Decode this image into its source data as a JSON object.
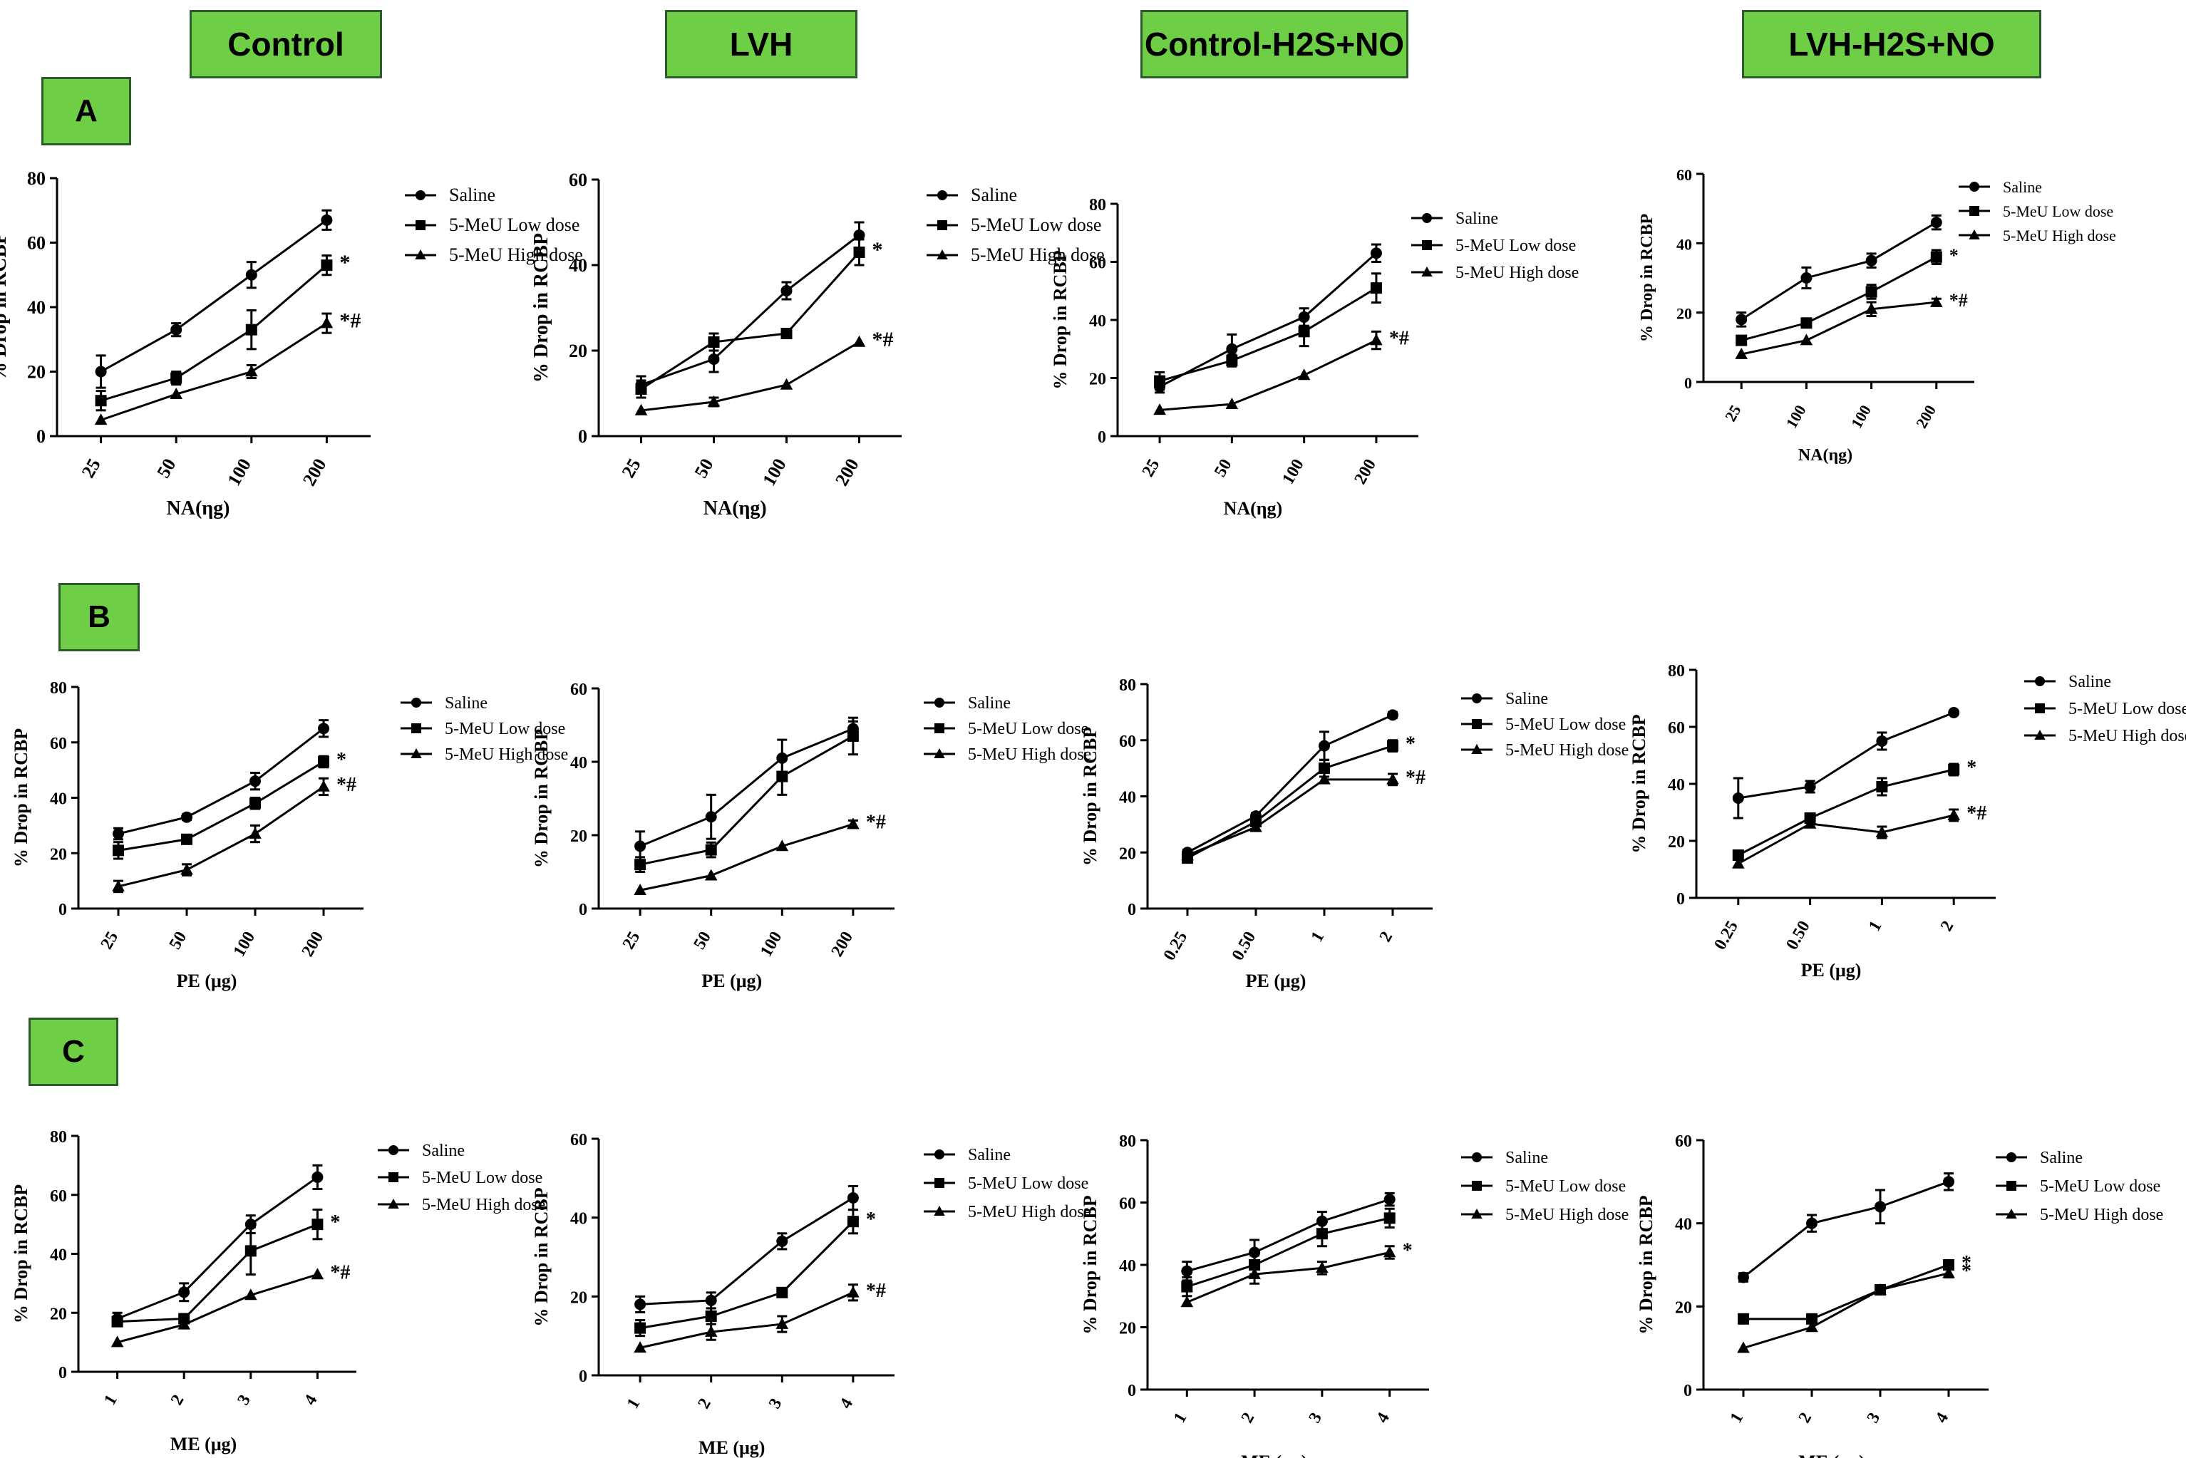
{
  "colors": {
    "header_fill": "#6ecf47",
    "header_border": "#2e5a2e",
    "ink": "#000000"
  },
  "column_headers": [
    "Control",
    "LVH",
    "Control-H2S+NO",
    "LVH-H2S+NO"
  ],
  "row_labels": [
    "A",
    "B",
    "C"
  ],
  "legend_labels": [
    "Saline",
    "5-MeU Low dose",
    "5-MeU High dose"
  ],
  "chart_data": [
    {
      "id": "A-Control",
      "type": "line",
      "title": "",
      "xlabel": "NA(ηg)",
      "ylabel": "% Drop in RCBP",
      "categories": [
        "25",
        "50",
        "100",
        "200"
      ],
      "ylim": [
        0,
        80
      ],
      "yticks": [
        0,
        20,
        40,
        60,
        80
      ],
      "series": [
        {
          "name": "Saline",
          "marker": "circle",
          "values": [
            20,
            33,
            50,
            67
          ],
          "errors": [
            5,
            2,
            4,
            3
          ]
        },
        {
          "name": "5-MeU Low dose",
          "marker": "square",
          "values": [
            11,
            18,
            33,
            53
          ],
          "errors": [
            3,
            2,
            6,
            3
          ]
        },
        {
          "name": "5-MeU High dose",
          "marker": "triangle",
          "values": [
            5,
            13,
            20,
            35
          ],
          "errors": [
            0,
            0,
            2,
            3
          ]
        }
      ],
      "annotations": [
        {
          "series": 1,
          "text": "*"
        },
        {
          "series": 2,
          "text": "*#"
        }
      ]
    },
    {
      "id": "A-LVH",
      "type": "line",
      "title": "",
      "xlabel": "NA(ηg)",
      "ylabel": "% Drop in RCBP",
      "categories": [
        "25",
        "50",
        "100",
        "200"
      ],
      "ylim": [
        0,
        60
      ],
      "yticks": [
        0,
        20,
        40,
        60
      ],
      "series": [
        {
          "name": "Saline",
          "marker": "circle",
          "values": [
            12,
            18,
            34,
            47
          ],
          "errors": [
            2,
            3,
            2,
            3
          ]
        },
        {
          "name": "5-MeU Low dose",
          "marker": "square",
          "values": [
            11,
            22,
            24,
            43
          ],
          "errors": [
            2,
            2,
            1,
            3
          ]
        },
        {
          "name": "5-MeU High dose",
          "marker": "triangle",
          "values": [
            6,
            8,
            12,
            22
          ],
          "errors": [
            0,
            1,
            0,
            0
          ]
        }
      ],
      "annotations": [
        {
          "series": 1,
          "text": "*"
        },
        {
          "series": 2,
          "text": "*#"
        }
      ]
    },
    {
      "id": "A-Control-H2S+NO",
      "type": "line",
      "title": "",
      "xlabel": "NA(ηg)",
      "ylabel": "% Drop in RCBP",
      "categories": [
        "25",
        "50",
        "100",
        "200"
      ],
      "ylim": [
        0,
        80
      ],
      "yticks": [
        0,
        20,
        40,
        60,
        80
      ],
      "series": [
        {
          "name": "Saline",
          "marker": "circle",
          "values": [
            17,
            30,
            41,
            63
          ],
          "errors": [
            2,
            5,
            3,
            3
          ]
        },
        {
          "name": "5-MeU Low dose",
          "marker": "square",
          "values": [
            19,
            26,
            36,
            51
          ],
          "errors": [
            3,
            2,
            5,
            5
          ]
        },
        {
          "name": "5-MeU High dose",
          "marker": "triangle",
          "values": [
            9,
            11,
            21,
            33
          ],
          "errors": [
            0,
            0,
            0,
            3
          ]
        }
      ],
      "annotations": [
        {
          "series": 2,
          "text": "*#"
        }
      ]
    },
    {
      "id": "A-LVH-H2S+NO",
      "type": "line",
      "title": "",
      "xlabel": "NA(ηg)",
      "ylabel": "% Drop in RCBP",
      "categories": [
        "25",
        "100",
        "100",
        "200"
      ],
      "ylim": [
        0,
        60
      ],
      "yticks": [
        0,
        20,
        40,
        60
      ],
      "series": [
        {
          "name": "Saline",
          "marker": "circle",
          "values": [
            18,
            30,
            35,
            46
          ],
          "errors": [
            2,
            3,
            2,
            2
          ]
        },
        {
          "name": "5-MeU Low dose",
          "marker": "square",
          "values": [
            12,
            17,
            26,
            36
          ],
          "errors": [
            1,
            0,
            2,
            2
          ]
        },
        {
          "name": "5-MeU High dose",
          "marker": "triangle",
          "values": [
            8,
            12,
            21,
            23
          ],
          "errors": [
            0,
            0,
            2,
            1
          ]
        }
      ],
      "annotations": [
        {
          "series": 1,
          "text": "*"
        },
        {
          "series": 2,
          "text": "*#"
        }
      ]
    },
    {
      "id": "B-Control",
      "type": "line",
      "title": "",
      "xlabel": "PE (μg)",
      "ylabel": "% Drop in RCBP",
      "categories": [
        "25",
        "50",
        "100",
        "200"
      ],
      "ylim": [
        0,
        80
      ],
      "yticks": [
        0,
        20,
        40,
        60,
        80
      ],
      "series": [
        {
          "name": "Saline",
          "marker": "circle",
          "values": [
            27,
            33,
            46,
            65
          ],
          "errors": [
            2,
            1,
            3,
            3
          ]
        },
        {
          "name": "5-MeU Low dose",
          "marker": "square",
          "values": [
            21,
            25,
            38,
            53
          ],
          "errors": [
            3,
            1,
            2,
            2
          ]
        },
        {
          "name": "5-MeU High dose",
          "marker": "triangle",
          "values": [
            8,
            14,
            27,
            44
          ],
          "errors": [
            2,
            2,
            3,
            3
          ]
        }
      ],
      "annotations": [
        {
          "series": 1,
          "text": "*"
        },
        {
          "series": 2,
          "text": "*#"
        }
      ]
    },
    {
      "id": "B-LVH",
      "type": "line",
      "title": "",
      "xlabel": "PE (μg)",
      "ylabel": "% Drop in RCBP",
      "categories": [
        "25",
        "50",
        "100",
        "200"
      ],
      "ylim": [
        0,
        60
      ],
      "yticks": [
        0,
        20,
        40,
        60
      ],
      "series": [
        {
          "name": "Saline",
          "marker": "circle",
          "values": [
            17,
            25,
            41,
            49
          ],
          "errors": [
            4,
            6,
            5,
            2
          ]
        },
        {
          "name": "5-MeU Low dose",
          "marker": "square",
          "values": [
            12,
            16,
            36,
            47
          ],
          "errors": [
            2,
            2,
            5,
            5
          ]
        },
        {
          "name": "5-MeU High dose",
          "marker": "triangle",
          "values": [
            5,
            9,
            17,
            23
          ],
          "errors": [
            0,
            0,
            0,
            1
          ]
        }
      ],
      "annotations": [
        {
          "series": 2,
          "text": "*#"
        }
      ]
    },
    {
      "id": "B-Control-H2S+NO",
      "type": "line",
      "title": "",
      "xlabel": "PE (μg)",
      "ylabel": "% Drop in RCBP",
      "categories": [
        "0.25",
        "0.50",
        "1",
        "2"
      ],
      "ylim": [
        0,
        80
      ],
      "yticks": [
        0,
        20,
        40,
        60,
        80
      ],
      "series": [
        {
          "name": "Saline",
          "marker": "circle",
          "values": [
            20,
            33,
            58,
            69
          ],
          "errors": [
            1,
            1,
            5,
            1
          ]
        },
        {
          "name": "5-MeU Low dose",
          "marker": "square",
          "values": [
            18,
            31,
            50,
            58
          ],
          "errors": [
            1,
            1,
            3,
            2
          ]
        },
        {
          "name": "5-MeU High dose",
          "marker": "triangle",
          "values": [
            19,
            29,
            46,
            46
          ],
          "errors": [
            0,
            0,
            0,
            2
          ]
        }
      ],
      "annotations": [
        {
          "series": 1,
          "text": "*"
        },
        {
          "series": 2,
          "text": "*#"
        }
      ]
    },
    {
      "id": "B-LVH-H2S+NO",
      "type": "line",
      "title": "",
      "xlabel": "PE (μg)",
      "ylabel": "% Drop in RCBP",
      "categories": [
        "0.25",
        "0.50",
        "1",
        "2"
      ],
      "ylim": [
        0,
        80
      ],
      "yticks": [
        0,
        20,
        40,
        60,
        80
      ],
      "series": [
        {
          "name": "Saline",
          "marker": "circle",
          "values": [
            35,
            39,
            55,
            65
          ],
          "errors": [
            7,
            2,
            3,
            0
          ]
        },
        {
          "name": "5-MeU Low dose",
          "marker": "square",
          "values": [
            15,
            28,
            39,
            45
          ],
          "errors": [
            0,
            0,
            3,
            2
          ]
        },
        {
          "name": "5-MeU High dose",
          "marker": "triangle",
          "values": [
            12,
            26,
            23,
            29
          ],
          "errors": [
            0,
            0,
            2,
            2
          ]
        }
      ],
      "annotations": [
        {
          "series": 1,
          "text": "*"
        },
        {
          "series": 2,
          "text": "*#"
        }
      ]
    },
    {
      "id": "C-Control",
      "type": "line",
      "title": "",
      "xlabel": "ME (μg)",
      "ylabel": "% Drop in RCBP",
      "categories": [
        "1",
        "2",
        "3",
        "4"
      ],
      "ylim": [
        0,
        80
      ],
      "yticks": [
        0,
        20,
        40,
        60,
        80
      ],
      "series": [
        {
          "name": "Saline",
          "marker": "circle",
          "values": [
            18,
            27,
            50,
            66
          ],
          "errors": [
            2,
            3,
            3,
            4
          ]
        },
        {
          "name": "5-MeU Low dose",
          "marker": "square",
          "values": [
            17,
            18,
            41,
            50
          ],
          "errors": [
            1,
            1,
            8,
            5
          ]
        },
        {
          "name": "5-MeU High dose",
          "marker": "triangle",
          "values": [
            10,
            16,
            26,
            33
          ],
          "errors": [
            0,
            0,
            0,
            0
          ]
        }
      ],
      "annotations": [
        {
          "series": 1,
          "text": "*"
        },
        {
          "series": 2,
          "text": "*#"
        }
      ]
    },
    {
      "id": "C-LVH",
      "type": "line",
      "title": "",
      "xlabel": "ME (μg)",
      "ylabel": "% Drop in RCBP",
      "categories": [
        "1",
        "2",
        "3",
        "4"
      ],
      "ylim": [
        0,
        60
      ],
      "yticks": [
        0,
        20,
        40,
        60
      ],
      "series": [
        {
          "name": "Saline",
          "marker": "circle",
          "values": [
            18,
            19,
            34,
            45
          ],
          "errors": [
            2,
            2,
            2,
            3
          ]
        },
        {
          "name": "5-MeU Low dose",
          "marker": "square",
          "values": [
            12,
            15,
            21,
            39
          ],
          "errors": [
            2,
            2,
            1,
            3
          ]
        },
        {
          "name": "5-MeU High dose",
          "marker": "triangle",
          "values": [
            7,
            11,
            13,
            21
          ],
          "errors": [
            0,
            2,
            2,
            2
          ]
        }
      ],
      "annotations": [
        {
          "series": 1,
          "text": "*"
        },
        {
          "series": 2,
          "text": "*#"
        }
      ]
    },
    {
      "id": "C-Control-H2S+NO",
      "type": "line",
      "title": "",
      "xlabel": "ME (μg)",
      "ylabel": "% Drop in RCBP",
      "categories": [
        "1",
        "2",
        "3",
        "4"
      ],
      "ylim": [
        0,
        80
      ],
      "yticks": [
        0,
        20,
        40,
        60,
        80
      ],
      "series": [
        {
          "name": "Saline",
          "marker": "circle",
          "values": [
            38,
            44,
            54,
            61
          ],
          "errors": [
            3,
            4,
            3,
            2
          ]
        },
        {
          "name": "5-MeU Low dose",
          "marker": "square",
          "values": [
            33,
            40,
            50,
            55
          ],
          "errors": [
            3,
            3,
            4,
            3
          ]
        },
        {
          "name": "5-MeU High dose",
          "marker": "triangle",
          "values": [
            28,
            37,
            39,
            44
          ],
          "errors": [
            0,
            3,
            2,
            2
          ]
        }
      ],
      "annotations": [
        {
          "series": 2,
          "text": "*"
        }
      ]
    },
    {
      "id": "C-LVH-H2S+NO",
      "type": "line",
      "title": "",
      "xlabel": "ME (μg)",
      "ylabel": "% Drop in RCBP",
      "categories": [
        "1",
        "2",
        "3",
        "4"
      ],
      "ylim": [
        0,
        60
      ],
      "yticks": [
        0,
        20,
        40,
        60
      ],
      "series": [
        {
          "name": "Saline",
          "marker": "circle",
          "values": [
            27,
            40,
            44,
            50
          ],
          "errors": [
            1,
            2,
            4,
            2
          ]
        },
        {
          "name": "5-MeU Low dose",
          "marker": "square",
          "values": [
            17,
            17,
            24,
            30
          ],
          "errors": [
            0,
            1,
            1,
            1
          ]
        },
        {
          "name": "5-MeU High dose",
          "marker": "triangle",
          "values": [
            10,
            15,
            24,
            28
          ],
          "errors": [
            0,
            0,
            0,
            1
          ]
        }
      ],
      "annotations": [
        {
          "series": 1,
          "text": "*"
        },
        {
          "series": 2,
          "text": "*"
        }
      ]
    }
  ]
}
